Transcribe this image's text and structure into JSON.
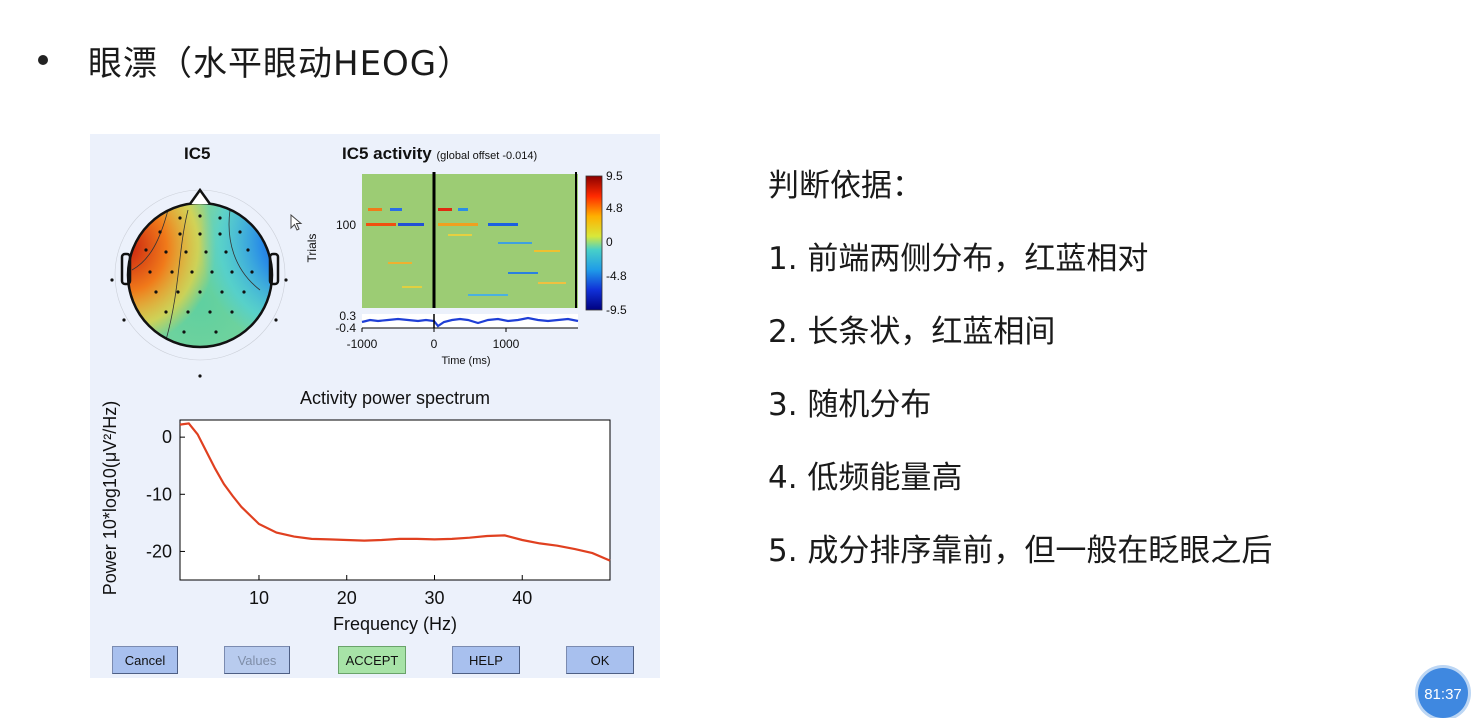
{
  "slide": {
    "headline": "眼漂（水平眼动HEOG）",
    "criteria_title": "判断依据：",
    "criteria": [
      "1. 前端两侧分布，红蓝相对",
      "2. 长条状，红蓝相间",
      "3. 随机分布",
      "4. 低频能量高",
      "5. 成分排序靠前，但一般在眨眼之后"
    ],
    "timer": "81:37"
  },
  "eeg_window": {
    "topo_title": "IC5",
    "activity_title": "IC5 activity",
    "activity_subtitle": "(global offset -0.014)",
    "erpimage": {
      "ylabel": "Trials",
      "y_tick": "100",
      "x_ticks": [
        "-1000",
        "0",
        "1000"
      ],
      "xlabel": "Time (ms)",
      "erp_ticks": [
        "0.3",
        "-0.4"
      ],
      "colorbar_ticks": [
        "9.5",
        "4.8",
        "0",
        "-4.8",
        "-9.5"
      ]
    },
    "colors": {
      "panel_bg": "#ecf1fb",
      "button": "#a8c0ee",
      "accept_button": "#a7e3a7",
      "spectrum_line": "#e04020",
      "erp_trace": "#1f3fd6"
    },
    "buttons": [
      {
        "label": "Cancel",
        "enabled": true
      },
      {
        "label": "Values",
        "enabled": false
      },
      {
        "label": "ACCEPT",
        "enabled": true
      },
      {
        "label": "HELP",
        "enabled": true
      },
      {
        "label": "OK",
        "enabled": true
      }
    ]
  },
  "chart_data": {
    "type": "line",
    "title": "Activity power spectrum",
    "xlabel": "Frequency (Hz)",
    "ylabel": "Power 10*log10(μV²/Hz)",
    "xlim": [
      1,
      50
    ],
    "ylim": [
      -25,
      3
    ],
    "x_ticks": [
      10,
      20,
      30,
      40
    ],
    "y_ticks": [
      0,
      -10,
      -20
    ],
    "series": [
      {
        "x": [
          1,
          2,
          3,
          4,
          5,
          6,
          7,
          8,
          10,
          12,
          14,
          16,
          18,
          20,
          22,
          24,
          26,
          28,
          30,
          32,
          34,
          36,
          38,
          40,
          42,
          44,
          46,
          48,
          50
        ],
        "y": [
          2.2,
          2.4,
          0.5,
          -2.5,
          -5.5,
          -8.2,
          -10.3,
          -12.2,
          -15.2,
          -16.7,
          -17.4,
          -17.8,
          -17.9,
          -18.0,
          -18.1,
          -18.0,
          -17.8,
          -17.8,
          -17.9,
          -17.8,
          -17.6,
          -17.3,
          -17.2,
          -18.0,
          -18.6,
          -19.0,
          -19.6,
          -20.3,
          -21.6
        ]
      }
    ]
  }
}
